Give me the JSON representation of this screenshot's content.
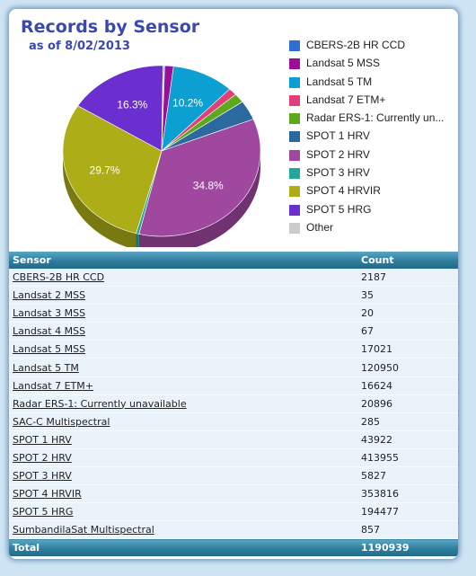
{
  "header": {
    "title": "Records by Sensor",
    "subtitle": "as of 8/02/2013"
  },
  "chart_data": {
    "type": "pie",
    "title": "Records by Sensor",
    "subtitle": "as of 8/02/2013",
    "legend_position": "right",
    "slices": [
      {
        "label": "CBERS-2B HR CCD",
        "value": 2187,
        "color": "#2c6fce"
      },
      {
        "label": "Landsat 5 MSS",
        "value": 17021,
        "color": "#9a0f98"
      },
      {
        "label": "Landsat 5 TM",
        "value": 120950,
        "color": "#0c9fd1"
      },
      {
        "label": "Landsat 7 ETM+",
        "value": 16624,
        "color": "#e0407a"
      },
      {
        "label": "Radar ERS-1: Currently un...",
        "value": 20896,
        "color": "#5ca91b"
      },
      {
        "label": "SPOT 1 HRV",
        "value": 43922,
        "color": "#2b6a9e"
      },
      {
        "label": "SPOT 2 HRV",
        "value": 413955,
        "color": "#a047a0"
      },
      {
        "label": "SPOT 3 HRV",
        "value": 5827,
        "color": "#22a898"
      },
      {
        "label": "SPOT 4 HRVIR",
        "value": 353816,
        "color": "#adad18"
      },
      {
        "label": "SPOT 5 HRG",
        "value": 194477,
        "color": "#6b2fd0"
      },
      {
        "label": "Other",
        "value": 1264,
        "color": "#cccccc"
      }
    ],
    "data_labels": [
      {
        "slice": "Landsat 5 TM",
        "text": "10.2%"
      },
      {
        "slice": "SPOT 2 HRV",
        "text": "34.8%"
      },
      {
        "slice": "SPOT 4 HRVIR",
        "text": "29.7%"
      },
      {
        "slice": "SPOT 5 HRG",
        "text": "16.3%"
      }
    ]
  },
  "table": {
    "headers": [
      "Sensor",
      "Count"
    ],
    "rows": [
      {
        "sensor": "CBERS-2B HR CCD",
        "count": "2187"
      },
      {
        "sensor": "Landsat 2 MSS",
        "count": "35"
      },
      {
        "sensor": "Landsat 3 MSS",
        "count": "20"
      },
      {
        "sensor": "Landsat 4 MSS",
        "count": "67"
      },
      {
        "sensor": "Landsat 5 MSS",
        "count": "17021"
      },
      {
        "sensor": "Landsat 5 TM",
        "count": "120950"
      },
      {
        "sensor": "Landsat 7 ETM+",
        "count": "16624"
      },
      {
        "sensor": "Radar ERS-1: Currently unavailable",
        "count": "20896"
      },
      {
        "sensor": "SAC-C Multispectral",
        "count": "285"
      },
      {
        "sensor": "SPOT 1 HRV",
        "count": "43922"
      },
      {
        "sensor": "SPOT 2 HRV",
        "count": "413955"
      },
      {
        "sensor": "SPOT 3 HRV",
        "count": "5827"
      },
      {
        "sensor": "SPOT 4 HRVIR",
        "count": "353816"
      },
      {
        "sensor": "SPOT 5 HRG",
        "count": "194477"
      },
      {
        "sensor": "SumbandilaSat Multispectral",
        "count": "857"
      }
    ],
    "footer": {
      "label": "Total",
      "value": "1190939"
    }
  }
}
